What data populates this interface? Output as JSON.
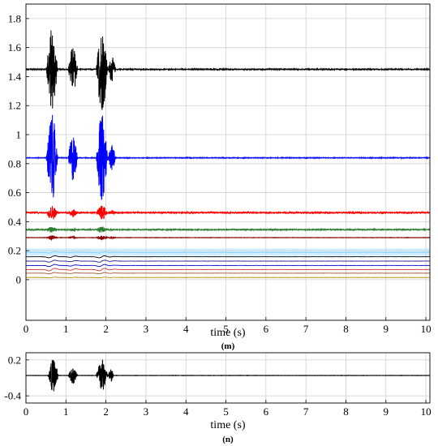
{
  "chart_data": [
    {
      "id": "m",
      "type": "line",
      "panel_label": "(m)",
      "xlabel": "time (s)",
      "ylabel": "",
      "xlim": [
        0,
        10.1
      ],
      "ylim": [
        -0.28,
        1.9
      ],
      "grid": true,
      "xticks": [
        0,
        1,
        2,
        3,
        4,
        5,
        6,
        7,
        8,
        9,
        10
      ],
      "yticks": [
        0,
        0.2,
        0.4,
        0.6,
        0.8,
        1,
        1.2,
        1.4,
        1.6,
        1.8
      ],
      "highlight_band": {
        "y0": 0.165,
        "y1": 0.215,
        "color": "#cfeeff"
      },
      "bursts": [
        {
          "start": 0.5,
          "end": 0.8,
          "weight": 1.0
        },
        {
          "start": 1.05,
          "end": 1.3,
          "weight": 0.55
        },
        {
          "start": 1.75,
          "end": 2.05,
          "weight": 1.0
        },
        {
          "start": 2.05,
          "end": 2.25,
          "weight": 0.3
        }
      ],
      "series": [
        {
          "baseline": 1.45,
          "color": "#000000",
          "amplitude": 0.29,
          "noise": 0.003,
          "kind": "burst"
        },
        {
          "baseline": 0.84,
          "color": "#0000ff",
          "amplitude": 0.3,
          "noise": 0.002,
          "kind": "burst"
        },
        {
          "baseline": 0.462,
          "color": "#ff0000",
          "amplitude": 0.05,
          "noise": 0.004,
          "kind": "burst"
        },
        {
          "baseline": 0.345,
          "color": "#2e7d32",
          "amplitude": 0.02,
          "noise": 0.003,
          "kind": "burst"
        },
        {
          "baseline": 0.29,
          "color": "#8b0000",
          "amplitude": 0.015,
          "noise": 0.001,
          "kind": "burst"
        },
        {
          "baseline": 0.188,
          "color": "#7fd0ff",
          "amplitude": 0.008,
          "noise": 0.001,
          "kind": "smooth"
        },
        {
          "baseline": 0.158,
          "color": "#000000",
          "amplitude": 0.012,
          "noise": 0.0005,
          "kind": "smooth"
        },
        {
          "baseline": 0.128,
          "color": "#1a1a8c",
          "amplitude": 0.012,
          "noise": 0.0005,
          "kind": "smooth"
        },
        {
          "baseline": 0.098,
          "color": "#0000cd",
          "amplitude": 0.012,
          "noise": 0.0005,
          "kind": "smooth"
        },
        {
          "baseline": 0.07,
          "color": "#cc3333",
          "amplitude": 0.015,
          "noise": 0.0005,
          "kind": "smooth"
        },
        {
          "baseline": 0.045,
          "color": "#a0522d",
          "amplitude": 0.008,
          "noise": 0.0003,
          "kind": "smooth"
        },
        {
          "baseline": 0.015,
          "color": "#b8860b",
          "amplitude": 0.004,
          "noise": 0.0002,
          "kind": "smooth"
        }
      ]
    },
    {
      "id": "n",
      "type": "line",
      "panel_label": "(n)",
      "xlabel": "time (s)",
      "ylabel": "",
      "xlim": [
        0,
        10.1
      ],
      "ylim": [
        -0.52,
        0.32
      ],
      "grid": true,
      "xticks": [
        0,
        1,
        2,
        3,
        4,
        5,
        6,
        7,
        8,
        9,
        10
      ],
      "yticks": [
        -0.4,
        0.2
      ],
      "bursts": [
        {
          "start": 0.55,
          "end": 0.82,
          "weight": 1.0
        },
        {
          "start": 1.05,
          "end": 1.3,
          "weight": 0.5
        },
        {
          "start": 1.75,
          "end": 2.05,
          "weight": 1.0
        },
        {
          "start": 2.05,
          "end": 2.2,
          "weight": 0.4
        }
      ],
      "series": [
        {
          "baseline": -0.06,
          "color": "#000000",
          "amplitude": 0.28,
          "noise": 0.002,
          "kind": "burst"
        }
      ]
    }
  ]
}
